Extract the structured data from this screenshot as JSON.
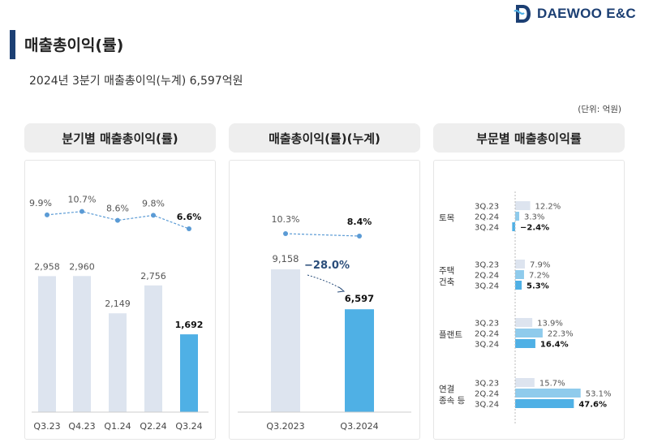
{
  "logo": {
    "text": "DAEWOO E&C"
  },
  "page_title": "매출총이익(률)",
  "subtitle": "2024년 3분기 매출총이익(누계) 6,597억원",
  "unit": "(단위: 억원)",
  "panels": {
    "quarterly": {
      "title": "분기별 매출총이익(률)"
    },
    "cumulative": {
      "title": "매출총이익(률)(누계)"
    },
    "segment": {
      "title": "부문별 매출총이익률"
    }
  },
  "colors": {
    "brand": "#1c3f73",
    "bar_light": "#dde4ef",
    "bar_mid": "#8fcbec",
    "bar_highlight": "#4fb0e5",
    "line": "#5b9bd5"
  },
  "chart_data": [
    {
      "type": "bar",
      "title": "분기별 매출총이익(률)",
      "categories": [
        "Q3.23",
        "Q4.23",
        "Q1.24",
        "Q2.24",
        "Q3.24"
      ],
      "values": [
        2958,
        2960,
        2149,
        2756,
        1692
      ],
      "value_labels": [
        "2,958",
        "2,960",
        "2,149",
        "2,756",
        "1,692"
      ],
      "line_values": [
        9.9,
        10.7,
        8.6,
        9.8,
        6.6
      ],
      "line_labels": [
        "9.9%",
        "10.7%",
        "8.6%",
        "9.8%",
        "6.6%"
      ],
      "highlight_index": 4
    },
    {
      "type": "bar",
      "title": "매출총이익(률)(누계)",
      "categories": [
        "Q3.2023",
        "Q3.2024"
      ],
      "values": [
        9158,
        6597
      ],
      "value_labels": [
        "9,158",
        "6,597"
      ],
      "line_values": [
        10.3,
        8.4
      ],
      "line_labels": [
        "10.3%",
        "8.4%"
      ],
      "change_label": "−28.0%",
      "highlight_index": 1
    },
    {
      "type": "bar",
      "orientation": "horizontal",
      "title": "부문별 매출총이익률",
      "groups": [
        {
          "name": "토목",
          "periods": [
            "3Q.23",
            "2Q.24",
            "3Q.24"
          ],
          "values": [
            12.2,
            3.3,
            -2.4
          ],
          "labels": [
            "12.2%",
            "3.3%",
            "−2.4%"
          ]
        },
        {
          "name": "주택\n건축",
          "periods": [
            "3Q.23",
            "2Q.24",
            "3Q.24"
          ],
          "values": [
            7.9,
            7.2,
            5.3
          ],
          "labels": [
            "7.9%",
            "7.2%",
            "5.3%"
          ]
        },
        {
          "name": "플랜트",
          "periods": [
            "3Q.23",
            "2Q.24",
            "3Q.24"
          ],
          "values": [
            13.9,
            22.3,
            16.4
          ],
          "labels": [
            "13.9%",
            "22.3%",
            "16.4%"
          ]
        },
        {
          "name": "연결\n종속 등",
          "periods": [
            "3Q.23",
            "2Q.24",
            "3Q.24"
          ],
          "values": [
            15.7,
            53.1,
            47.6
          ],
          "labels": [
            "15.7%",
            "53.1%",
            "47.6%"
          ]
        }
      ]
    }
  ]
}
